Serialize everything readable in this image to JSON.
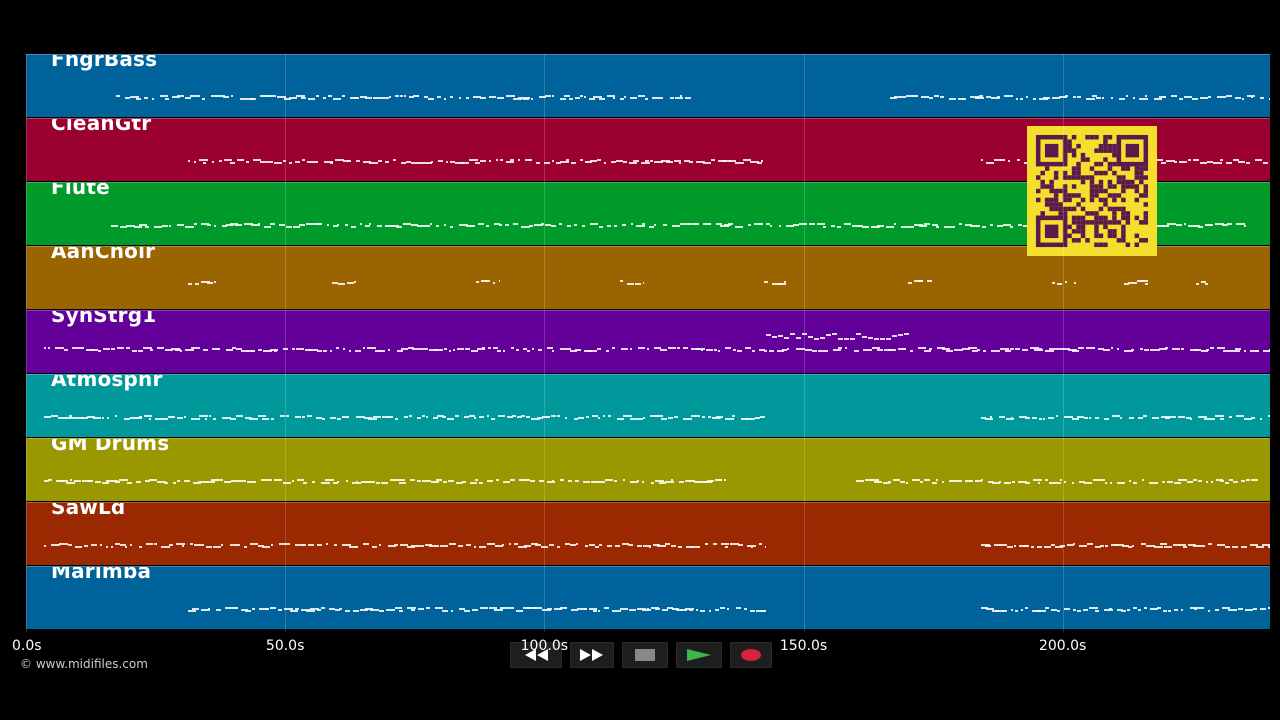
{
  "tracks": [
    {
      "name": "FngrBass",
      "color": "#00629a"
    },
    {
      "name": "CleanGtr",
      "color": "#9a0030"
    },
    {
      "name": "Flute",
      "color": "#009a2b"
    },
    {
      "name": "AahChoir",
      "color": "#9a6400"
    },
    {
      "name": "SynStrg1",
      "color": "#63009a"
    },
    {
      "name": "Atmosphr",
      "color": "#00989a"
    },
    {
      "name": "GM Drums",
      "color": "#9a9800"
    },
    {
      "name": "SawLd",
      "color": "#9a2800"
    },
    {
      "name": "Marimba",
      "color": "#00629a"
    }
  ],
  "timeline": {
    "labels": [
      "0.0s",
      "50.0s",
      "100.0s",
      "150.0s",
      "200.0s"
    ],
    "max_seconds": 240
  },
  "copyright": "© www.midifiles.com",
  "controls": {
    "rewind": "rewind-icon",
    "fast_forward": "fast-forward-icon",
    "stop": "stop-icon",
    "play": "play-icon",
    "record": "record-icon"
  },
  "qr": {
    "color": "#f5df2e",
    "dark": "#5a1a4a"
  }
}
